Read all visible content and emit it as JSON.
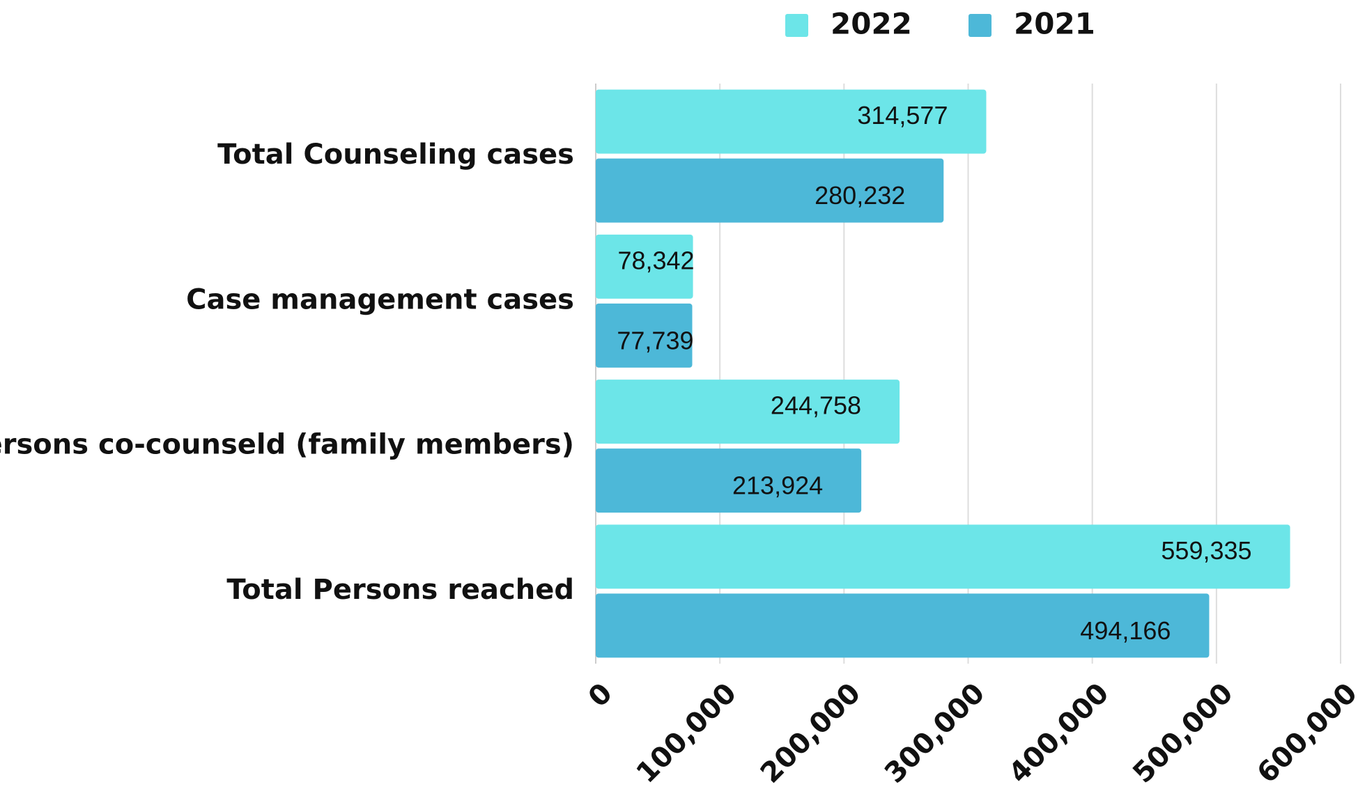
{
  "chart_data": {
    "type": "bar",
    "orientation": "horizontal",
    "categories": [
      "Total Counseling cases",
      "Case management cases",
      "Persons co-counseld (family members)",
      "Total Persons reached"
    ],
    "series": [
      {
        "name": "2022",
        "color": "#6ce5e8",
        "values": [
          314577,
          78342,
          244758,
          559335
        ],
        "value_labels": [
          "314,577",
          "78,342",
          "244,758",
          "559,335"
        ]
      },
      {
        "name": "2021",
        "color": "#4db8d8",
        "values": [
          280232,
          77739,
          213924,
          494166
        ],
        "value_labels": [
          "280,232",
          "77,739",
          "213,924",
          "494,166"
        ]
      }
    ],
    "xlim": [
      0,
      600000
    ],
    "xticks": [
      0,
      {
        "value": 100000,
        "label": "100,000"
      },
      {
        "value": 200000,
        "label": "200,000"
      },
      {
        "value": 300000,
        "label": "300,000"
      },
      {
        "value": 400000,
        "label": "400,000"
      },
      {
        "value": 500000,
        "label": "500,000"
      },
      {
        "value": 600000,
        "label": "600,000"
      }
    ],
    "grid": true,
    "legend": "top"
  }
}
